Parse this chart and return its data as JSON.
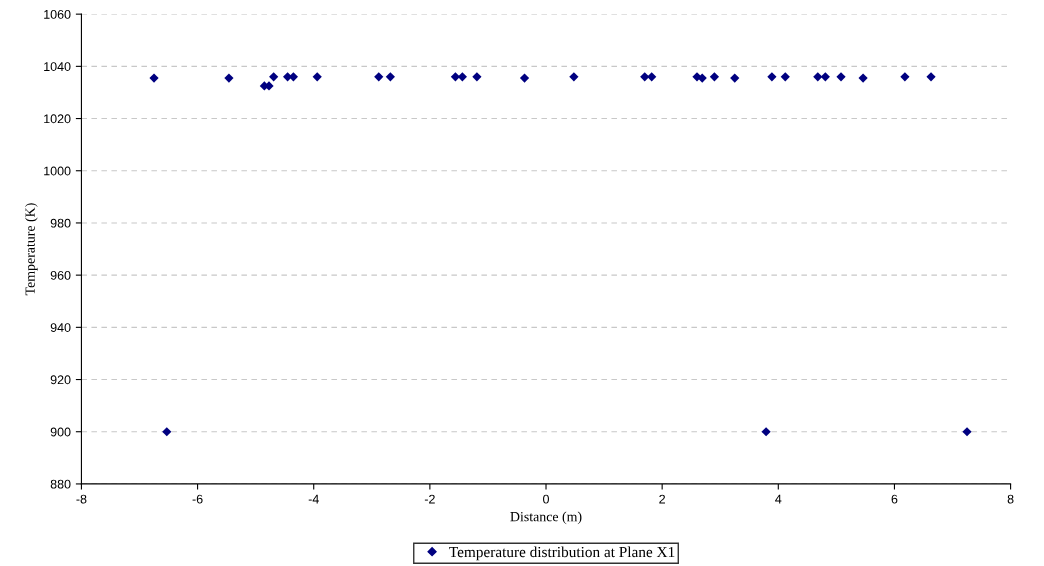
{
  "chart_data": {
    "type": "scatter",
    "xlabel": "Distance (m)",
    "ylabel": "Temperature (K)",
    "xlim": [
      -8,
      8
    ],
    "xticks": [
      -8,
      -6,
      -4,
      -2,
      0,
      2,
      4,
      6,
      8
    ],
    "ylim": [
      880,
      1060
    ],
    "yticks": [
      880,
      900,
      920,
      940,
      960,
      980,
      1000,
      1020,
      1040,
      1060
    ],
    "grid": "y",
    "legend": "bottom",
    "marker": "diamond",
    "series": [
      {
        "name": "Temperature distribution at Plane X1",
        "color": "#000080",
        "x": [
          -6.75,
          -5.46,
          -4.85,
          -4.77,
          -4.69,
          -4.45,
          -4.35,
          -3.94,
          -2.88,
          -2.68,
          -1.56,
          -1.44,
          -1.19,
          -0.37,
          0.48,
          1.7,
          1.82,
          2.6,
          2.69,
          2.9,
          3.25,
          3.89,
          4.12,
          4.68,
          4.81,
          5.08,
          5.46,
          6.18,
          6.63,
          -6.53,
          3.79,
          7.25
        ],
        "values": [
          1035.5,
          1035.5,
          1032.5,
          1032.5,
          1036,
          1036,
          1036,
          1036,
          1036,
          1036,
          1036,
          1036,
          1036,
          1035.5,
          1036,
          1036,
          1036,
          1036,
          1035.5,
          1036,
          1035.5,
          1036,
          1036,
          1036,
          1036,
          1036,
          1035.5,
          1036,
          1036,
          900,
          900,
          900
        ]
      }
    ]
  }
}
